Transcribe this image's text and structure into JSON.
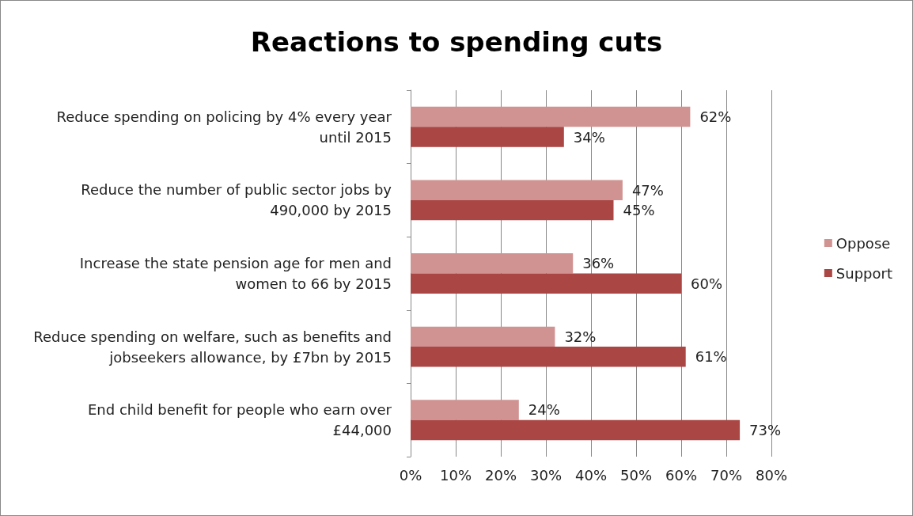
{
  "chart_data": {
    "type": "bar",
    "title": "Reactions to spending cuts",
    "orientation": "horizontal",
    "categories": [
      "Reduce spending on policing by 4% every year until 2015",
      "Reduce the number of public sector jobs by 490,000 by 2015",
      "Increase the state pension age for men and women to 66 by 2015",
      "Reduce spending on welfare, such as benefits and jobseekers allowance, by £7bn by 2015",
      "End child benefit for people who earn over £44,000"
    ],
    "series": [
      {
        "name": "Oppose",
        "color": "#d09392",
        "values": [
          62,
          47,
          36,
          32,
          24
        ],
        "value_labels": [
          "62%",
          "47%",
          "36%",
          "32%",
          "24%"
        ]
      },
      {
        "name": "Support",
        "color": "#aa4644",
        "values": [
          34,
          45,
          60,
          61,
          73
        ],
        "value_labels": [
          "34%",
          "45%",
          "60%",
          "61%",
          "73%"
        ]
      }
    ],
    "xlim": [
      0,
      80
    ],
    "xticks": [
      {
        "value": 0,
        "label": "0%"
      },
      {
        "value": 10,
        "label": "10%"
      },
      {
        "value": 20,
        "label": "20%"
      },
      {
        "value": 30,
        "label": "30%"
      },
      {
        "value": 40,
        "label": "40%"
      },
      {
        "value": 50,
        "label": "50%"
      },
      {
        "value": 60,
        "label": "60%"
      },
      {
        "value": 70,
        "label": "70%"
      },
      {
        "value": 80,
        "label": "80%"
      }
    ],
    "grid": "x",
    "legend": "right"
  }
}
